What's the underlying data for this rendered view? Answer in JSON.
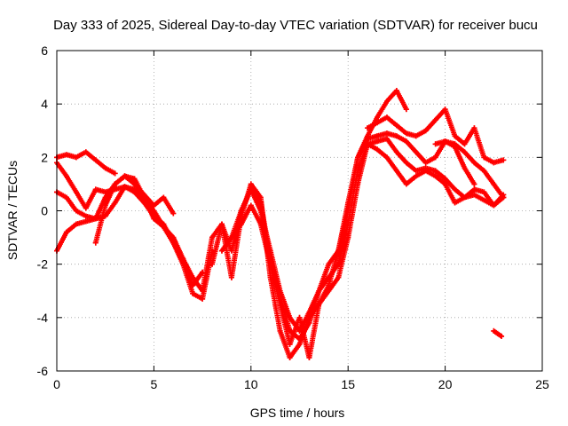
{
  "chart_data": {
    "type": "scatter",
    "title": "Day 333 of 2025, Sidereal Day-to-day VTEC variation (SDTVAR) for receiver bucu",
    "xlabel": "GPS time / hours",
    "ylabel": "SDTVAR / TECUs",
    "xlim": [
      0,
      25
    ],
    "ylim": [
      -6,
      6
    ],
    "x_ticks": [
      0,
      5,
      10,
      15,
      20,
      25
    ],
    "y_ticks": [
      -6,
      -4,
      -2,
      0,
      2,
      4,
      6
    ],
    "x_tick_labels": [
      "0",
      "5",
      "10",
      "15",
      "20",
      "25"
    ],
    "y_tick_labels": [
      "-6",
      "-4",
      "-2",
      "0",
      "2",
      "4",
      "6"
    ],
    "grid": true,
    "marker": "plus",
    "color": "#ff0000",
    "series": [
      {
        "x": [
          0.0,
          0.5,
          1.0,
          1.5,
          2.0,
          2.5,
          3.0
        ],
        "y": [
          2.0,
          2.1,
          2.0,
          2.2,
          1.9,
          1.6,
          1.4
        ]
      },
      {
        "x": [
          0.0,
          0.5,
          1.0,
          1.5,
          2.0,
          2.5,
          3.0,
          3.5,
          4.0,
          4.5,
          5.0,
          5.5,
          6.0,
          6.5,
          7.0,
          7.5,
          8.0
        ],
        "y": [
          1.8,
          1.3,
          0.7,
          0.1,
          0.8,
          0.7,
          0.8,
          0.9,
          0.7,
          0.3,
          -0.2,
          -0.5,
          -1.2,
          -2.0,
          -3.1,
          -3.3,
          -1.5
        ]
      },
      {
        "x": [
          0.0,
          0.5,
          1.0,
          1.5,
          2.0,
          2.5,
          3.0,
          3.5,
          4.0,
          4.5,
          5.0,
          5.5,
          6.0
        ],
        "y": [
          0.7,
          0.5,
          0.0,
          -0.2,
          -0.3,
          0.5,
          1.0,
          1.3,
          1.0,
          0.6,
          0.2,
          0.5,
          -0.1
        ]
      },
      {
        "x": [
          0.0,
          0.5,
          1.0,
          1.5,
          2.0,
          2.5,
          3.0,
          3.5,
          4.0,
          4.5,
          5.0,
          5.5,
          6.0,
          6.5,
          7.0,
          7.5,
          8.0
        ],
        "y": [
          -1.5,
          -0.8,
          -0.5,
          -0.4,
          -0.3,
          -0.2,
          0.3,
          0.9,
          0.8,
          0.4,
          0.0,
          -0.6,
          -1.0,
          -1.8,
          -2.5,
          -3.0,
          -1.0
        ]
      },
      {
        "x": [
          2.0,
          2.5,
          3.0,
          3.5,
          4.0,
          4.5,
          5.0,
          5.5,
          6.0,
          6.5,
          7.0,
          7.5
        ],
        "y": [
          -1.2,
          0.2,
          1.0,
          1.3,
          1.2,
          0.5,
          -0.3,
          -0.6,
          -1.2,
          -1.8,
          -2.8,
          -2.3
        ]
      },
      {
        "x": [
          8.0,
          8.5,
          9.0,
          9.5,
          10.0,
          10.5,
          11.0,
          11.5,
          12.0,
          12.5,
          13.0,
          13.5,
          14.0,
          14.5,
          15.0,
          15.5,
          16.0,
          16.5,
          17.0,
          17.5,
          18.0
        ],
        "y": [
          -1.0,
          -0.5,
          -1.5,
          0.0,
          0.8,
          0.3,
          -1.8,
          -3.2,
          -4.5,
          -4.8,
          -4.2,
          -3.0,
          -2.0,
          -1.5,
          0.3,
          2.0,
          2.8,
          3.5,
          4.1,
          4.5,
          3.8
        ]
      },
      {
        "x": [
          8.0,
          8.5,
          9.0,
          9.5,
          10.0,
          10.5,
          11.0,
          11.5,
          12.0,
          12.5,
          13.0,
          13.5,
          14.0,
          14.5,
          15.0,
          15.5,
          16.0,
          16.5,
          17.0,
          17.5,
          18.0,
          18.5,
          19.0,
          19.5,
          20.0,
          20.5,
          21.0,
          21.5,
          22.0,
          22.5,
          23.0
        ],
        "y": [
          -2.0,
          -0.5,
          -2.5,
          -0.2,
          1.0,
          0.5,
          -2.5,
          -4.5,
          -5.5,
          -5.0,
          -4.0,
          -3.5,
          -2.8,
          -1.5,
          0.0,
          2.0,
          2.7,
          2.8,
          2.9,
          2.8,
          2.6,
          2.2,
          1.8,
          2.0,
          2.6,
          2.5,
          2.2,
          1.8,
          1.5,
          1.0,
          0.5
        ]
      },
      {
        "x": [
          8.5,
          9.0,
          9.5,
          10.0,
          10.5,
          11.0,
          11.5,
          12.0,
          12.5,
          13.0,
          13.5,
          14.0,
          14.5,
          15.0,
          15.5,
          16.0,
          16.5,
          17.0,
          17.5,
          18.0,
          18.5,
          19.0,
          19.5,
          20.0,
          20.5,
          21.0,
          21.5,
          22.0,
          22.5,
          23.0
        ],
        "y": [
          -1.5,
          -1.0,
          0.0,
          0.8,
          0.0,
          -1.5,
          -3.0,
          -4.0,
          -4.5,
          -3.8,
          -3.0,
          -2.5,
          -2.0,
          -0.5,
          1.5,
          2.5,
          2.6,
          2.7,
          2.2,
          1.8,
          1.5,
          1.6,
          1.5,
          1.2,
          0.8,
          0.5,
          0.6,
          0.4,
          0.2,
          0.5
        ]
      },
      {
        "x": [
          9.0,
          9.5,
          10.0,
          10.5,
          11.0,
          11.5,
          12.0,
          12.5,
          13.0,
          13.5,
          14.0,
          14.5,
          15.0,
          15.5,
          16.0,
          16.5,
          17.0,
          17.5,
          18.0,
          18.5,
          19.0,
          19.5,
          20.0,
          20.5,
          21.0,
          21.5,
          22.0,
          22.5,
          23.0
        ],
        "y": [
          -1.0,
          -0.5,
          0.2,
          -0.5,
          -2.0,
          -3.5,
          -5.0,
          -4.0,
          -5.5,
          -3.5,
          -3.0,
          -2.5,
          -1.0,
          1.0,
          2.5,
          2.3,
          2.0,
          1.5,
          1.0,
          1.3,
          1.5,
          1.3,
          1.0,
          0.3,
          0.5,
          0.8,
          0.7,
          0.2,
          0.6
        ]
      },
      {
        "x": [
          16.0,
          16.5,
          17.0,
          17.5,
          18.0,
          18.5,
          19.0,
          19.5,
          20.0,
          20.5,
          21.0,
          21.5,
          22.0,
          22.5,
          23.0
        ],
        "y": [
          3.1,
          3.3,
          3.5,
          3.2,
          2.9,
          2.8,
          3.0,
          3.4,
          3.8,
          2.8,
          2.5,
          3.1,
          2.0,
          1.8,
          1.9
        ]
      },
      {
        "x": [
          19.5,
          20.0,
          20.5,
          21.0,
          21.5
        ],
        "y": [
          2.5,
          2.6,
          2.4,
          1.6,
          1.0
        ]
      },
      {
        "x": [
          22.5,
          22.7,
          22.9
        ],
        "y": [
          -4.5,
          -4.6,
          -4.7
        ]
      }
    ]
  }
}
